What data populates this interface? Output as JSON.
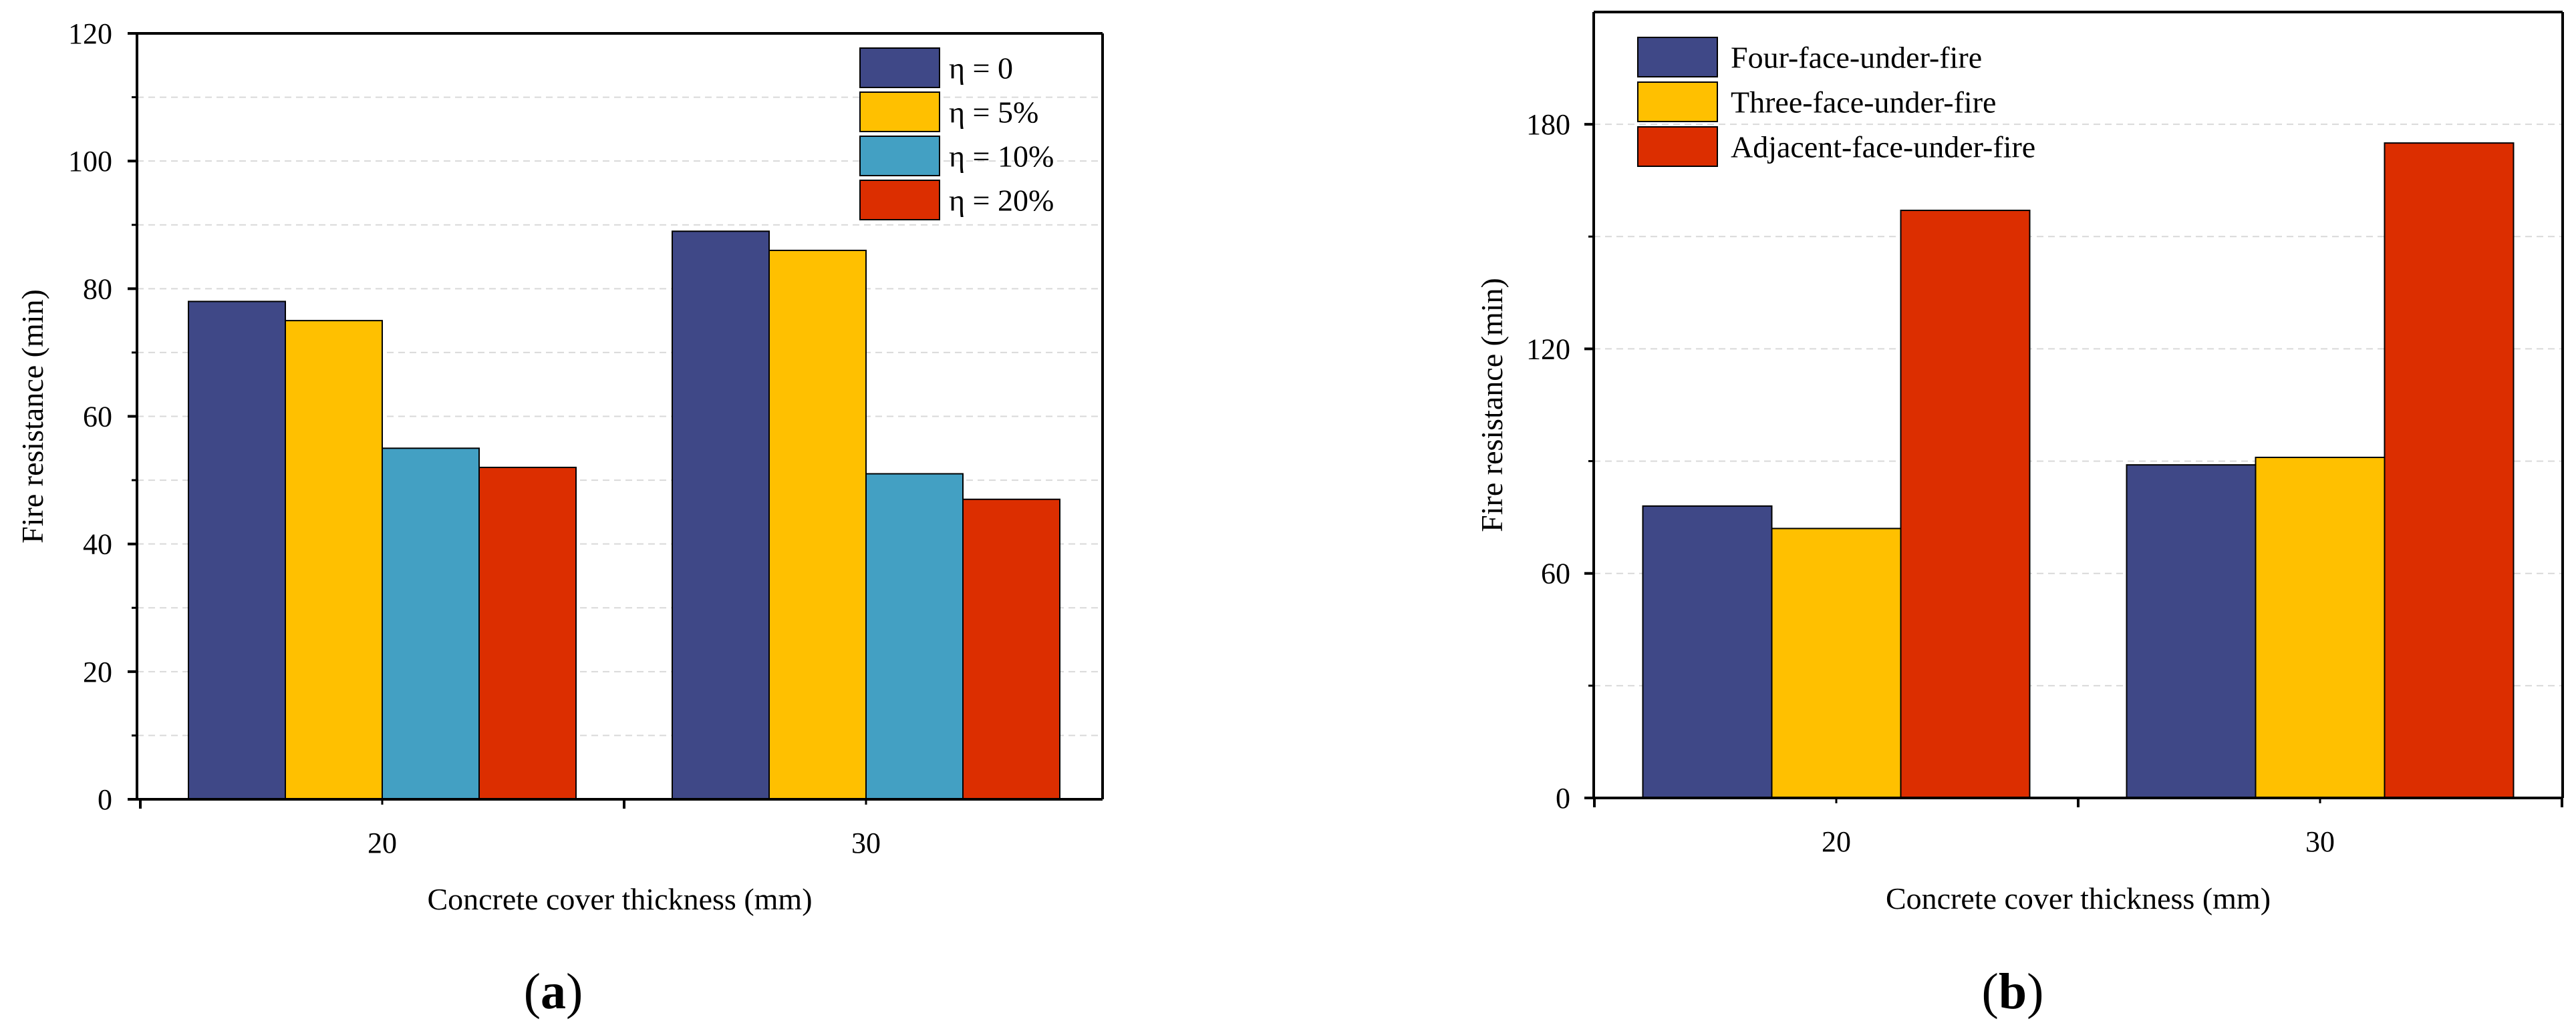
{
  "colors": {
    "navy": "#3f4887",
    "yellow": "#ffc000",
    "teal": "#43a0c3",
    "red": "#dc2e00",
    "grid": "#d9d9d9",
    "axis": "#000000"
  },
  "chart_data": [
    {
      "type": "bar",
      "panel": "a",
      "panel_label": {
        "open": "(",
        "letter": "a",
        "close": ")"
      },
      "xlabel": "Concrete cover thickness (mm)",
      "ylabel": "Fire resistance (min)",
      "ylim": [
        0,
        120
      ],
      "yticks": [
        0,
        20,
        40,
        60,
        80,
        100,
        120
      ],
      "ytick_labels": [
        "0",
        "20",
        "40",
        "60",
        "80",
        "100",
        "120"
      ],
      "categories": [
        "20",
        "30"
      ],
      "grid": true,
      "legend_position": "top-right",
      "series": [
        {
          "name": "η = 0",
          "color": "#3f4887",
          "values": [
            78,
            89
          ]
        },
        {
          "name": "η = 5%",
          "color": "#ffc000",
          "values": [
            75,
            86
          ]
        },
        {
          "name": "η = 10%",
          "color": "#43a0c3",
          "values": [
            55,
            51
          ]
        },
        {
          "name": "η = 20%",
          "color": "#dc2e00",
          "values": [
            52,
            47
          ]
        }
      ]
    },
    {
      "type": "bar",
      "panel": "b",
      "panel_label": {
        "open": "(",
        "letter": "b",
        "close": ")"
      },
      "xlabel": "Concrete cover thickness (mm)",
      "ylabel": "Fire resistance (min)",
      "ylim": [
        0,
        210
      ],
      "yticks": [
        0,
        60,
        120,
        180
      ],
      "ytick_labels": [
        "0",
        "60",
        "120",
        "180"
      ],
      "categories": [
        "20",
        "30"
      ],
      "grid": true,
      "legend_position": "top-left",
      "series": [
        {
          "name": "Four-face-under-fire",
          "color": "#3f4887",
          "values": [
            78,
            89
          ]
        },
        {
          "name": "Three-face-under-fire",
          "color": "#ffc000",
          "values": [
            72,
            91
          ]
        },
        {
          "name": "Adjacent-face-under-fire",
          "color": "#dc2e00",
          "values": [
            157,
            175
          ]
        }
      ]
    }
  ]
}
